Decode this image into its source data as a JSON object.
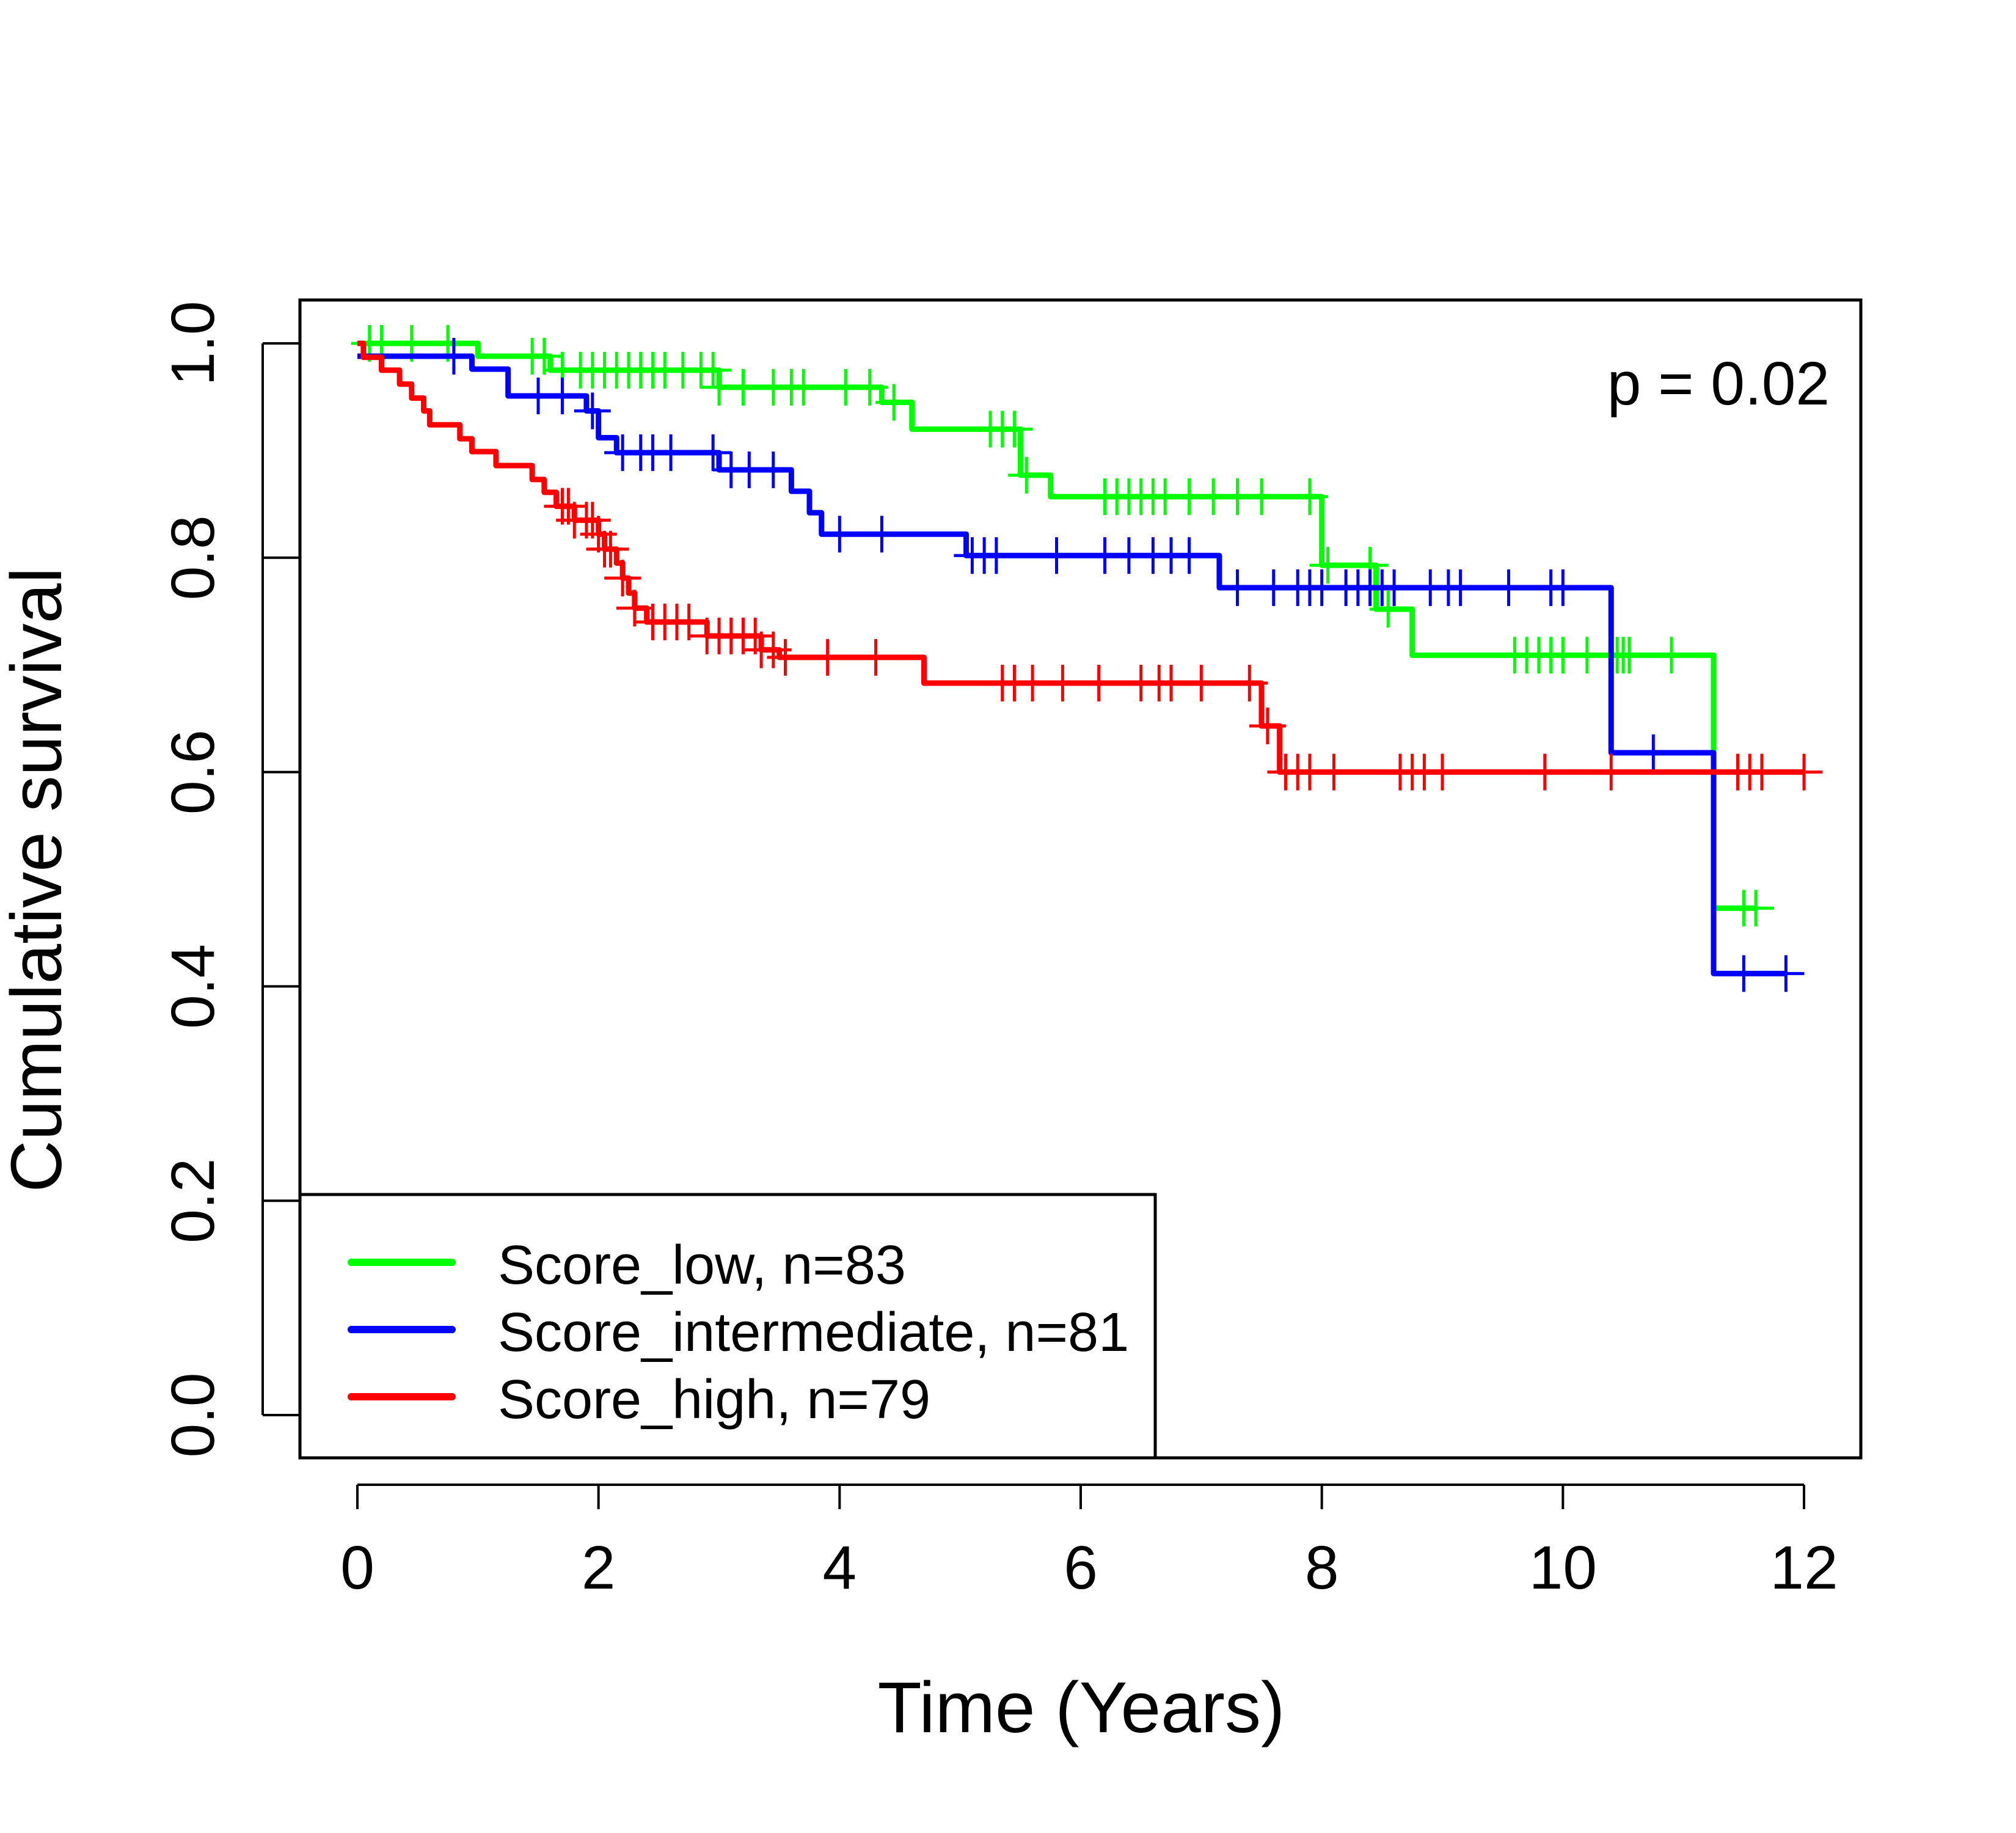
{
  "chart_data": {
    "type": "line",
    "subtype": "kaplan-meier step",
    "title": "",
    "xlabel": "Time (Years)",
    "ylabel": "Cumulative survival",
    "xlim": [
      0,
      12
    ],
    "ylim": [
      0,
      1
    ],
    "xticks": [
      0,
      2,
      4,
      6,
      8,
      10,
      12
    ],
    "xtick_labels": [
      "0",
      "2",
      "4",
      "6",
      "8",
      "10",
      "12"
    ],
    "yticks": [
      0,
      0.2,
      0.4,
      0.6,
      0.8,
      1.0
    ],
    "ytick_labels": [
      "0.0",
      "0.2",
      "0.4",
      "0.6",
      "0.8",
      "1.0"
    ],
    "grid": false,
    "annotation": "p = 0.02",
    "legend_position": "bottom-left",
    "series": [
      {
        "name": "Score_low, n=83",
        "color": "#00ff00",
        "steps": [
          [
            0,
            1.0
          ],
          [
            1.0,
            0.988
          ],
          [
            1.6,
            0.975
          ],
          [
            3.0,
            0.959
          ],
          [
            4.35,
            0.945
          ],
          [
            4.6,
            0.92
          ],
          [
            5.5,
            0.877
          ],
          [
            5.75,
            0.857
          ],
          [
            8.0,
            0.793
          ],
          [
            8.45,
            0.752
          ],
          [
            8.75,
            0.709
          ],
          [
            11.25,
            0.473
          ],
          [
            11.6,
            0.473
          ]
        ],
        "censors": [
          0.1,
          0.2,
          0.45,
          0.75,
          1.45,
          1.55,
          1.7,
          1.85,
          1.95,
          2.05,
          2.15,
          2.25,
          2.35,
          2.45,
          2.55,
          2.7,
          2.85,
          2.95,
          3.0,
          3.2,
          3.45,
          3.6,
          3.7,
          4.05,
          4.25,
          4.45,
          5.25,
          5.35,
          5.45,
          5.55,
          6.2,
          6.3,
          6.4,
          6.5,
          6.6,
          6.7,
          6.9,
          7.1,
          7.3,
          7.5,
          7.9,
          8.05,
          8.4,
          8.55,
          9.6,
          9.7,
          9.8,
          9.9,
          10.0,
          10.2,
          10.45,
          10.5,
          10.55,
          10.9,
          11.5,
          11.6
        ]
      },
      {
        "name": "Score_intermediate, n=81",
        "color": "#0000ff",
        "steps": [
          [
            0,
            0.988
          ],
          [
            0.95,
            0.976
          ],
          [
            1.25,
            0.951
          ],
          [
            1.9,
            0.937
          ],
          [
            2.0,
            0.912
          ],
          [
            2.15,
            0.898
          ],
          [
            3.0,
            0.882
          ],
          [
            3.6,
            0.862
          ],
          [
            3.75,
            0.842
          ],
          [
            3.85,
            0.822
          ],
          [
            5.05,
            0.802
          ],
          [
            7.15,
            0.772
          ],
          [
            10.4,
            0.618
          ],
          [
            11.25,
            0.412
          ],
          [
            11.85,
            0.412
          ]
        ],
        "censors": [
          0.8,
          1.5,
          1.7,
          1.95,
          2.2,
          2.35,
          2.45,
          2.6,
          2.95,
          3.1,
          3.25,
          3.45,
          4.0,
          4.35,
          5.1,
          5.2,
          5.3,
          5.8,
          6.2,
          6.4,
          6.6,
          6.75,
          6.9,
          7.3,
          7.6,
          7.8,
          7.9,
          8.0,
          8.2,
          8.3,
          8.4,
          8.5,
          8.6,
          8.9,
          9.05,
          9.15,
          9.55,
          9.9,
          10.0,
          10.75,
          11.5,
          11.85
        ]
      },
      {
        "name": "Score_high, n=79",
        "color": "#ff0000",
        "steps": [
          [
            0,
            1.0
          ],
          [
            0.05,
            0.987
          ],
          [
            0.2,
            0.975
          ],
          [
            0.35,
            0.962
          ],
          [
            0.45,
            0.949
          ],
          [
            0.55,
            0.937
          ],
          [
            0.6,
            0.924
          ],
          [
            0.85,
            0.911
          ],
          [
            0.95,
            0.899
          ],
          [
            1.15,
            0.886
          ],
          [
            1.45,
            0.873
          ],
          [
            1.55,
            0.861
          ],
          [
            1.65,
            0.848
          ],
          [
            1.8,
            0.835
          ],
          [
            2.0,
            0.822
          ],
          [
            2.05,
            0.808
          ],
          [
            2.15,
            0.795
          ],
          [
            2.2,
            0.781
          ],
          [
            2.25,
            0.767
          ],
          [
            2.3,
            0.753
          ],
          [
            2.4,
            0.74
          ],
          [
            2.9,
            0.727
          ],
          [
            3.35,
            0.714
          ],
          [
            3.5,
            0.707
          ],
          [
            4.7,
            0.683
          ],
          [
            7.5,
            0.643
          ],
          [
            7.65,
            0.6
          ],
          [
            12.0,
            0.6
          ]
        ],
        "censors": [
          1.7,
          1.75,
          1.8,
          1.9,
          1.95,
          2.0,
          2.05,
          2.1,
          2.2,
          2.3,
          2.45,
          2.55,
          2.65,
          2.75,
          2.9,
          3.0,
          3.1,
          3.2,
          3.3,
          3.35,
          3.45,
          3.55,
          3.9,
          4.3,
          5.35,
          5.45,
          5.6,
          5.85,
          6.15,
          6.5,
          6.65,
          6.75,
          7.0,
          7.4,
          7.55,
          7.7,
          7.8,
          7.9,
          8.1,
          8.65,
          8.75,
          8.85,
          9.0,
          9.85,
          10.4,
          11.45,
          11.55,
          11.65,
          12.0
        ]
      }
    ]
  }
}
